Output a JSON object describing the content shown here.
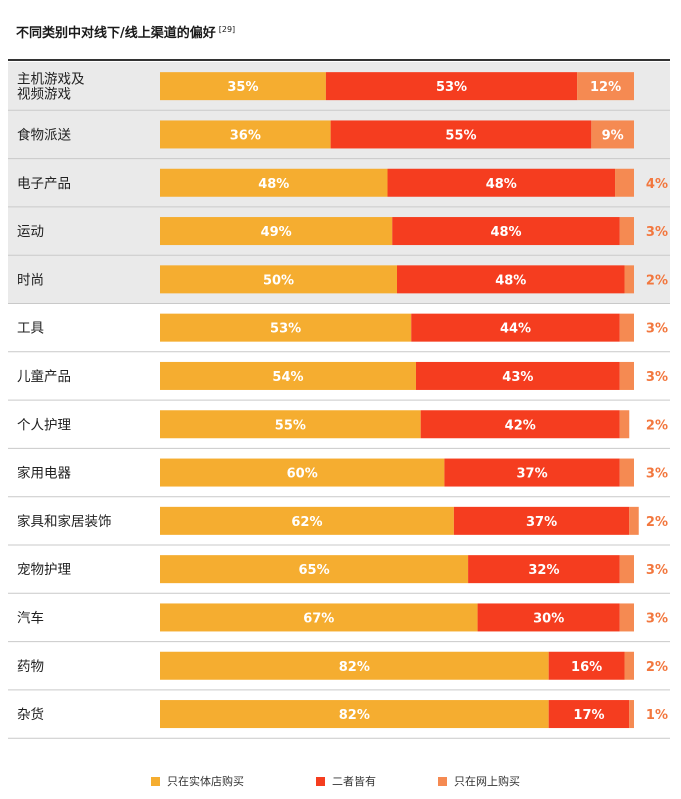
{
  "title": "不同类别中对线下/线上渠道的偏好",
  "title_ref": "[29]",
  "colors": {
    "offline": "#f5ad30",
    "both": "#f53d1f",
    "online": "#f58a52",
    "shade": "#eaeaea",
    "divider": "#c9c9c9",
    "outside_label": "#f2773e"
  },
  "legend": [
    {
      "label": "只在实体店购买",
      "color": "#f5ad30"
    },
    {
      "label": "二者皆有",
      "color": "#f53d1f"
    },
    {
      "label": "只在网上购买",
      "color": "#f58a52"
    }
  ],
  "chart_data": {
    "type": "bar",
    "orientation": "horizontal",
    "stacked": true,
    "categories": [
      "主机游戏及\n视频游戏",
      "食物派送",
      "电子产品",
      "运动",
      "时尚",
      "工具",
      "儿童产品",
      "个人护理",
      "家用电器",
      "家具和家居装饰",
      "宠物护理",
      "汽车",
      "药物",
      "杂货"
    ],
    "series": [
      {
        "name": "只在实体店购买",
        "values": [
          35,
          36,
          48,
          49,
          50,
          53,
          54,
          55,
          60,
          62,
          65,
          67,
          82,
          82
        ]
      },
      {
        "name": "二者皆有",
        "values": [
          53,
          55,
          48,
          48,
          48,
          44,
          43,
          42,
          37,
          37,
          32,
          30,
          16,
          17
        ]
      },
      {
        "name": "只在网上购买",
        "values": [
          12,
          9,
          4,
          3,
          2,
          3,
          3,
          2,
          3,
          2,
          3,
          3,
          2,
          1
        ]
      }
    ],
    "shaded_rows": 5,
    "unit": "%"
  }
}
